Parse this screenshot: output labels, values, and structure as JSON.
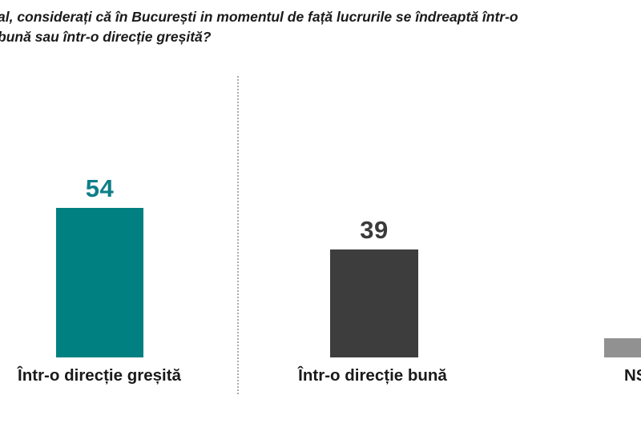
{
  "title": {
    "line1": "al, considerați că în București in momentul de față lucrurile se îndreaptă într-o",
    "line2": "bună sau într-o direcție greșită?"
  },
  "chart_data": {
    "type": "bar",
    "categories": [
      "Într-o direcție greșită",
      "Într-o direcție bună",
      "NS"
    ],
    "values": [
      54,
      39,
      7
    ],
    "colors": [
      "#008080",
      "#3d3d3d",
      "#919191"
    ],
    "value_label_colors": [
      "#0e7f88",
      "#3a3a3a",
      "#919191"
    ],
    "title_line1": "al, considerați că în București in momentul de față lucrurile se îndreaptă într-o",
    "title_line2": "bună sau într-o direcție greșită?",
    "xlabel": "",
    "ylabel": "",
    "grid": false,
    "legend": "none",
    "orientation": "vertical",
    "baseline_axis_visible": false,
    "separator": "dotted vertical line between first and second bar",
    "note_visible_labels": "value labels shown for first two bars only; third bar and its NS label are clipped by the right edge"
  }
}
